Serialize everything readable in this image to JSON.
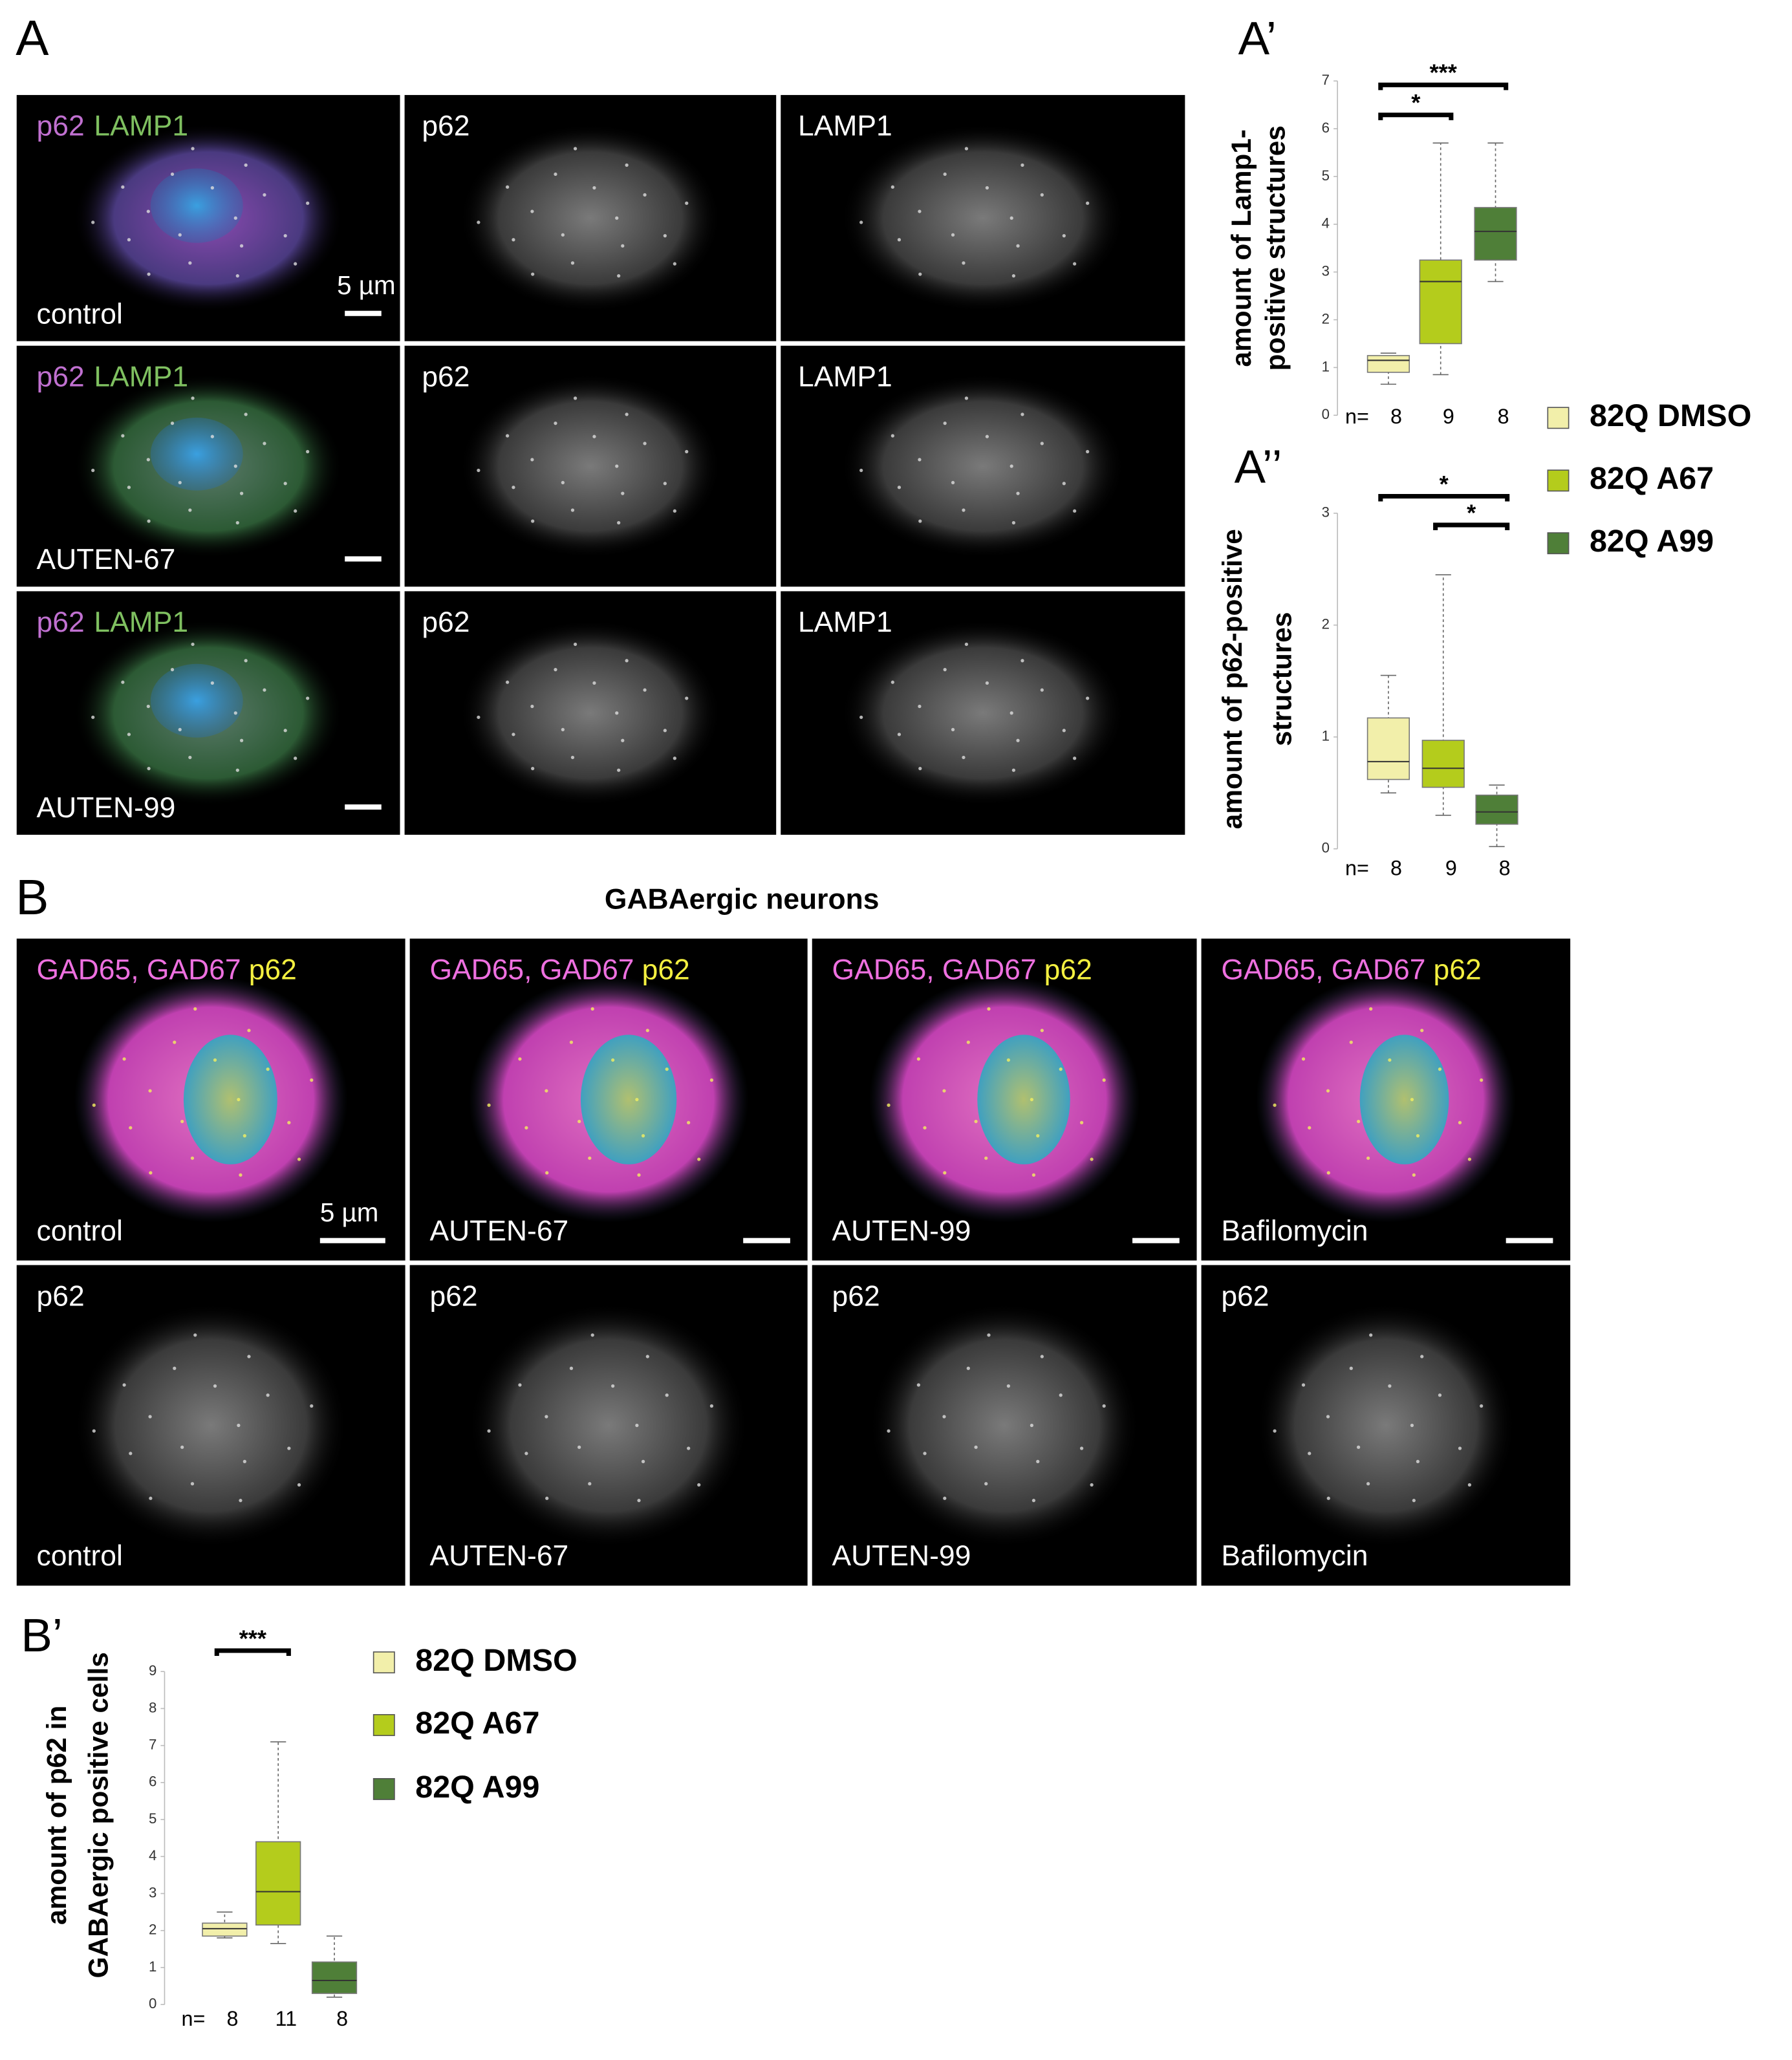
{
  "panel_labels": {
    "A": "A",
    "A1": "A’",
    "A2": "A’’",
    "B": "B",
    "B1": "B’"
  },
  "panel_A": {
    "merge_labels": [
      "p62",
      "LAMP1"
    ],
    "column_labels": [
      "p62",
      "LAMP1"
    ],
    "row_labels": [
      "control",
      "AUTEN-67",
      "AUTEN-99"
    ],
    "scale_bar": "5 µm"
  },
  "panel_B": {
    "title": "GABAergic neurons",
    "merge_labels": [
      "GAD65, GAD67",
      "p62"
    ],
    "gray_label": "p62",
    "column_labels": [
      "control",
      "AUTEN-67",
      "AUTEN-99",
      "Bafilomycin"
    ],
    "scale_bar": "5 µm"
  },
  "chart_data": [
    {
      "type": "box",
      "ylabel": [
        "amount of Lamp1-",
        "positive structures"
      ],
      "ylim": [
        0,
        7
      ],
      "yticks": [
        0,
        1,
        2,
        3,
        4,
        5,
        6,
        7
      ],
      "n_label": "n=",
      "n": [
        8,
        9,
        8
      ],
      "significance": [
        "*",
        "***"
      ],
      "series": [
        {
          "name": "82Q DMSO",
          "color": "#f2efaa",
          "low": 0.65,
          "q1": 0.9,
          "median": 1.15,
          "q3": 1.25,
          "high": 1.3
        },
        {
          "name": "82Q A67",
          "color": "#b4cc1c",
          "low": 0.85,
          "q1": 1.5,
          "median": 2.8,
          "q3": 3.25,
          "high": 5.7
        },
        {
          "name": "82Q A99",
          "color": "#4f7f38",
          "low": 2.8,
          "q1": 3.25,
          "median": 3.85,
          "q3": 4.35,
          "high": 5.7
        }
      ]
    },
    {
      "type": "box",
      "ylabel": [
        "amount of p62-positive",
        "structures"
      ],
      "ylim": [
        0,
        3
      ],
      "yticks": [
        0,
        1,
        2,
        3
      ],
      "n_label": "n=",
      "n": [
        8,
        9,
        8
      ],
      "significance": [
        "*",
        "*"
      ],
      "series": [
        {
          "color": "#f2efaa",
          "low": 0.5,
          "q1": 0.62,
          "median": 0.78,
          "q3": 1.17,
          "high": 1.55
        },
        {
          "color": "#b4cc1c",
          "low": 0.3,
          "q1": 0.55,
          "median": 0.72,
          "q3": 0.97,
          "high": 2.45
        },
        {
          "color": "#4f7f38",
          "low": 0.02,
          "q1": 0.22,
          "median": 0.33,
          "q3": 0.48,
          "high": 0.57
        }
      ]
    },
    {
      "type": "box",
      "ylabel": [
        "amount of p62 in",
        "GABAergic positive cells"
      ],
      "ylim": [
        0,
        9
      ],
      "yticks": [
        0,
        1,
        2,
        3,
        4,
        5,
        6,
        7,
        8,
        9
      ],
      "n_label": "n=",
      "n": [
        8,
        11,
        8
      ],
      "significance": [
        "***"
      ],
      "series": [
        {
          "name": "82Q DMSO",
          "color": "#f2efaa",
          "low": 1.8,
          "q1": 1.85,
          "median": 2.05,
          "q3": 2.2,
          "high": 2.5
        },
        {
          "name": "82Q A67",
          "color": "#b4cc1c",
          "low": 1.65,
          "q1": 2.15,
          "median": 3.05,
          "q3": 4.4,
          "high": 7.1
        },
        {
          "name": "82Q A99",
          "color": "#4f7f38",
          "low": 0.2,
          "q1": 0.3,
          "median": 0.65,
          "q3": 1.15,
          "high": 1.85
        }
      ]
    }
  ]
}
